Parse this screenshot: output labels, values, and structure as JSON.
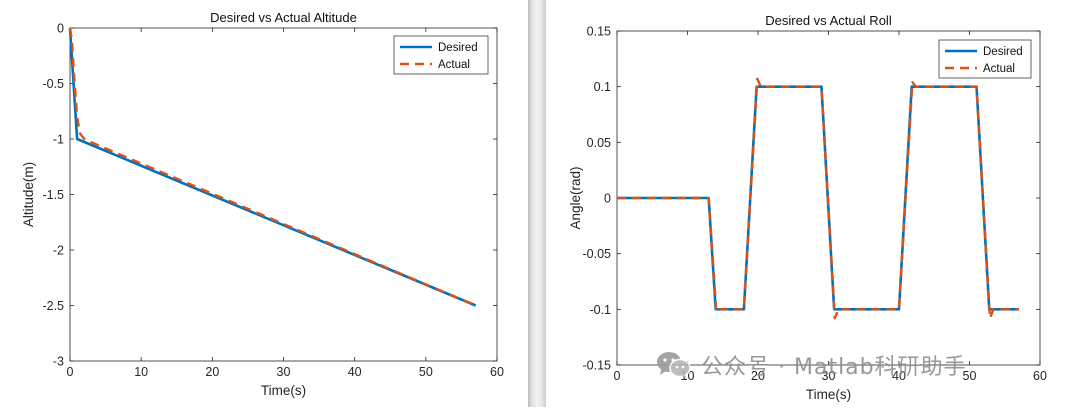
{
  "chart_data": [
    {
      "type": "line",
      "title": "Desired vs Actual Altitude",
      "xlabel": "Time(s)",
      "ylabel": "Altitude(m)",
      "xlim": [
        0,
        60
      ],
      "ylim": [
        -3,
        0
      ],
      "xticks": [
        0,
        10,
        20,
        30,
        40,
        50,
        60
      ],
      "yticks": [
        0,
        -0.5,
        -1,
        -1.5,
        -2,
        -2.5,
        -3
      ],
      "xtick_labels": [
        "0",
        "10",
        "20",
        "30",
        "40",
        "50",
        "60"
      ],
      "ytick_labels": [
        "0",
        "-0.5",
        "-1",
        "-1.5",
        "-2",
        "-2.5",
        "-3"
      ],
      "grid": false,
      "legend_position": "top-right",
      "series": [
        {
          "name": "Desired",
          "color": "#0072BD",
          "style": "solid",
          "x": [
            0,
            1,
            57
          ],
          "y": [
            0,
            -1,
            -2.5
          ]
        },
        {
          "name": "Actual",
          "color": "#D95319",
          "style": "dashed",
          "x": [
            0,
            0.25,
            0.6,
            1.0,
            1.4,
            2.0,
            3.0,
            57
          ],
          "y": [
            0,
            -0.1,
            -0.45,
            -0.8,
            -0.95,
            -1.0,
            -1.03,
            -2.5
          ]
        }
      ]
    },
    {
      "type": "line",
      "title": "Desired vs Actual Roll",
      "xlabel": "Time(s)",
      "ylabel": "Angle(rad)",
      "xlim": [
        0,
        60
      ],
      "ylim": [
        -0.15,
        0.15
      ],
      "xticks": [
        0,
        10,
        20,
        30,
        40,
        50,
        60
      ],
      "yticks": [
        0.15,
        0.1,
        0.05,
        0,
        -0.05,
        -0.1,
        -0.15
      ],
      "xtick_labels": [
        "0",
        "10",
        "20",
        "30",
        "40",
        "50",
        "60"
      ],
      "ytick_labels": [
        "0.15",
        "0.1",
        "0.05",
        "0",
        "-0.05",
        "-0.1",
        "-0.15"
      ],
      "grid": false,
      "legend_position": "top-right",
      "series": [
        {
          "name": "Desired",
          "color": "#0072BD",
          "style": "solid",
          "x": [
            0,
            13,
            14,
            18,
            19.8,
            29,
            30.8,
            40,
            41.8,
            51,
            52.8,
            57
          ],
          "y": [
            0,
            0,
            -0.1,
            -0.1,
            0.1,
            0.1,
            -0.1,
            -0.1,
            0.1,
            0.1,
            -0.1,
            -0.1
          ]
        },
        {
          "name": "Actual",
          "color": "#D95319",
          "style": "dashed",
          "x": [
            0,
            13,
            14.1,
            14.6,
            18,
            19.9,
            20.4,
            29,
            30.9,
            31.4,
            40,
            41.9,
            42.4,
            51,
            52.9,
            53.4,
            57
          ],
          "y": [
            0,
            0,
            -0.103,
            -0.1,
            -0.1,
            0.107,
            0.1,
            0.1,
            -0.108,
            -0.1,
            -0.1,
            0.104,
            0.1,
            0.1,
            -0.108,
            -0.1,
            -0.1
          ]
        }
      ]
    }
  ],
  "watermark": {
    "text": "公众号 · Matlab科研助手",
    "icon": "wechat-icon"
  }
}
